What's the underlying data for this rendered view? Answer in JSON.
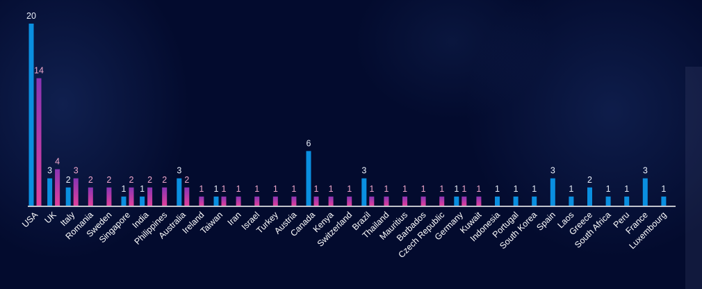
{
  "chart_data": {
    "type": "bar",
    "categories": [
      "USA",
      "UK",
      "Italy",
      "Romania",
      "Sweden",
      "Singapore",
      "India",
      "Philippines",
      "Australia",
      "Ireland",
      "Taiwan",
      "Iran",
      "Israel",
      "Turkey",
      "Austria",
      "Canada",
      "Kenya",
      "Switzerland",
      "Brazil",
      "Thailand",
      "Mauritius",
      "Barbados",
      "Czech Republic",
      "Germany",
      "Kuwait",
      "Indonesia",
      "Portugal",
      "South Korea",
      "Spain",
      "Laos",
      "Greece",
      "South Africa",
      "Peru",
      "France",
      "Luxembourg"
    ],
    "series": [
      {
        "values": [
          20,
          3,
          2,
          null,
          null,
          1,
          1,
          null,
          3,
          null,
          1,
          null,
          null,
          null,
          null,
          6,
          null,
          null,
          3,
          null,
          null,
          null,
          null,
          1,
          null,
          1,
          1,
          1,
          3,
          1,
          2,
          1,
          1,
          3,
          1
        ]
      },
      {
        "values": [
          14,
          4,
          3,
          2,
          2,
          2,
          2,
          2,
          2,
          1,
          1,
          1,
          1,
          1,
          1,
          1,
          1,
          1,
          1,
          1,
          1,
          1,
          1,
          1,
          1,
          null,
          null,
          null,
          null,
          null,
          null,
          null,
          null,
          null,
          null
        ]
      }
    ],
    "colors": {
      "series1": "#0a8fe0",
      "series1_label": "#e8eef8",
      "series2_top": "#8a34b4",
      "series2_bottom": "#e0409c",
      "series2_label": "#f0a8cc",
      "axis": "#ffffff"
    },
    "ylim": [
      0,
      20
    ],
    "grid": false,
    "legend": "none"
  }
}
